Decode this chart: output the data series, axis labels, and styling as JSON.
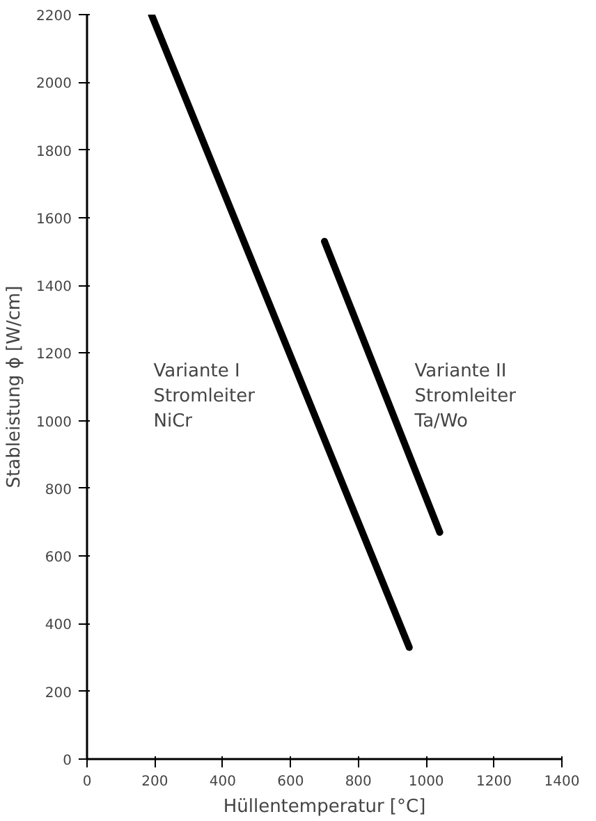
{
  "chart_data": {
    "type": "line",
    "xlabel": "Hüllentemperatur [°C]",
    "ylabel": "Stableistung ϕ [W/cm]",
    "xlim": [
      0,
      1400
    ],
    "ylim": [
      0,
      2200
    ],
    "xticks": [
      0,
      200,
      400,
      600,
      800,
      1000,
      1200,
      1400
    ],
    "yticks": [
      0,
      200,
      400,
      600,
      800,
      1000,
      1200,
      1400,
      1600,
      1800,
      2000,
      2200
    ],
    "grid": false,
    "line_style": "solid",
    "series": [
      {
        "color": "#000000",
        "x": [
          190,
          950
        ],
        "values": [
          2200,
          330
        ]
      },
      {
        "color": "#000000",
        "x": [
          700,
          1040
        ],
        "values": [
          1530,
          670
        ]
      }
    ],
    "annotations": [
      "Variante I\nStromleiter\nNiCr",
      "Variante II\nStromleiter\nTa/Wo"
    ]
  }
}
